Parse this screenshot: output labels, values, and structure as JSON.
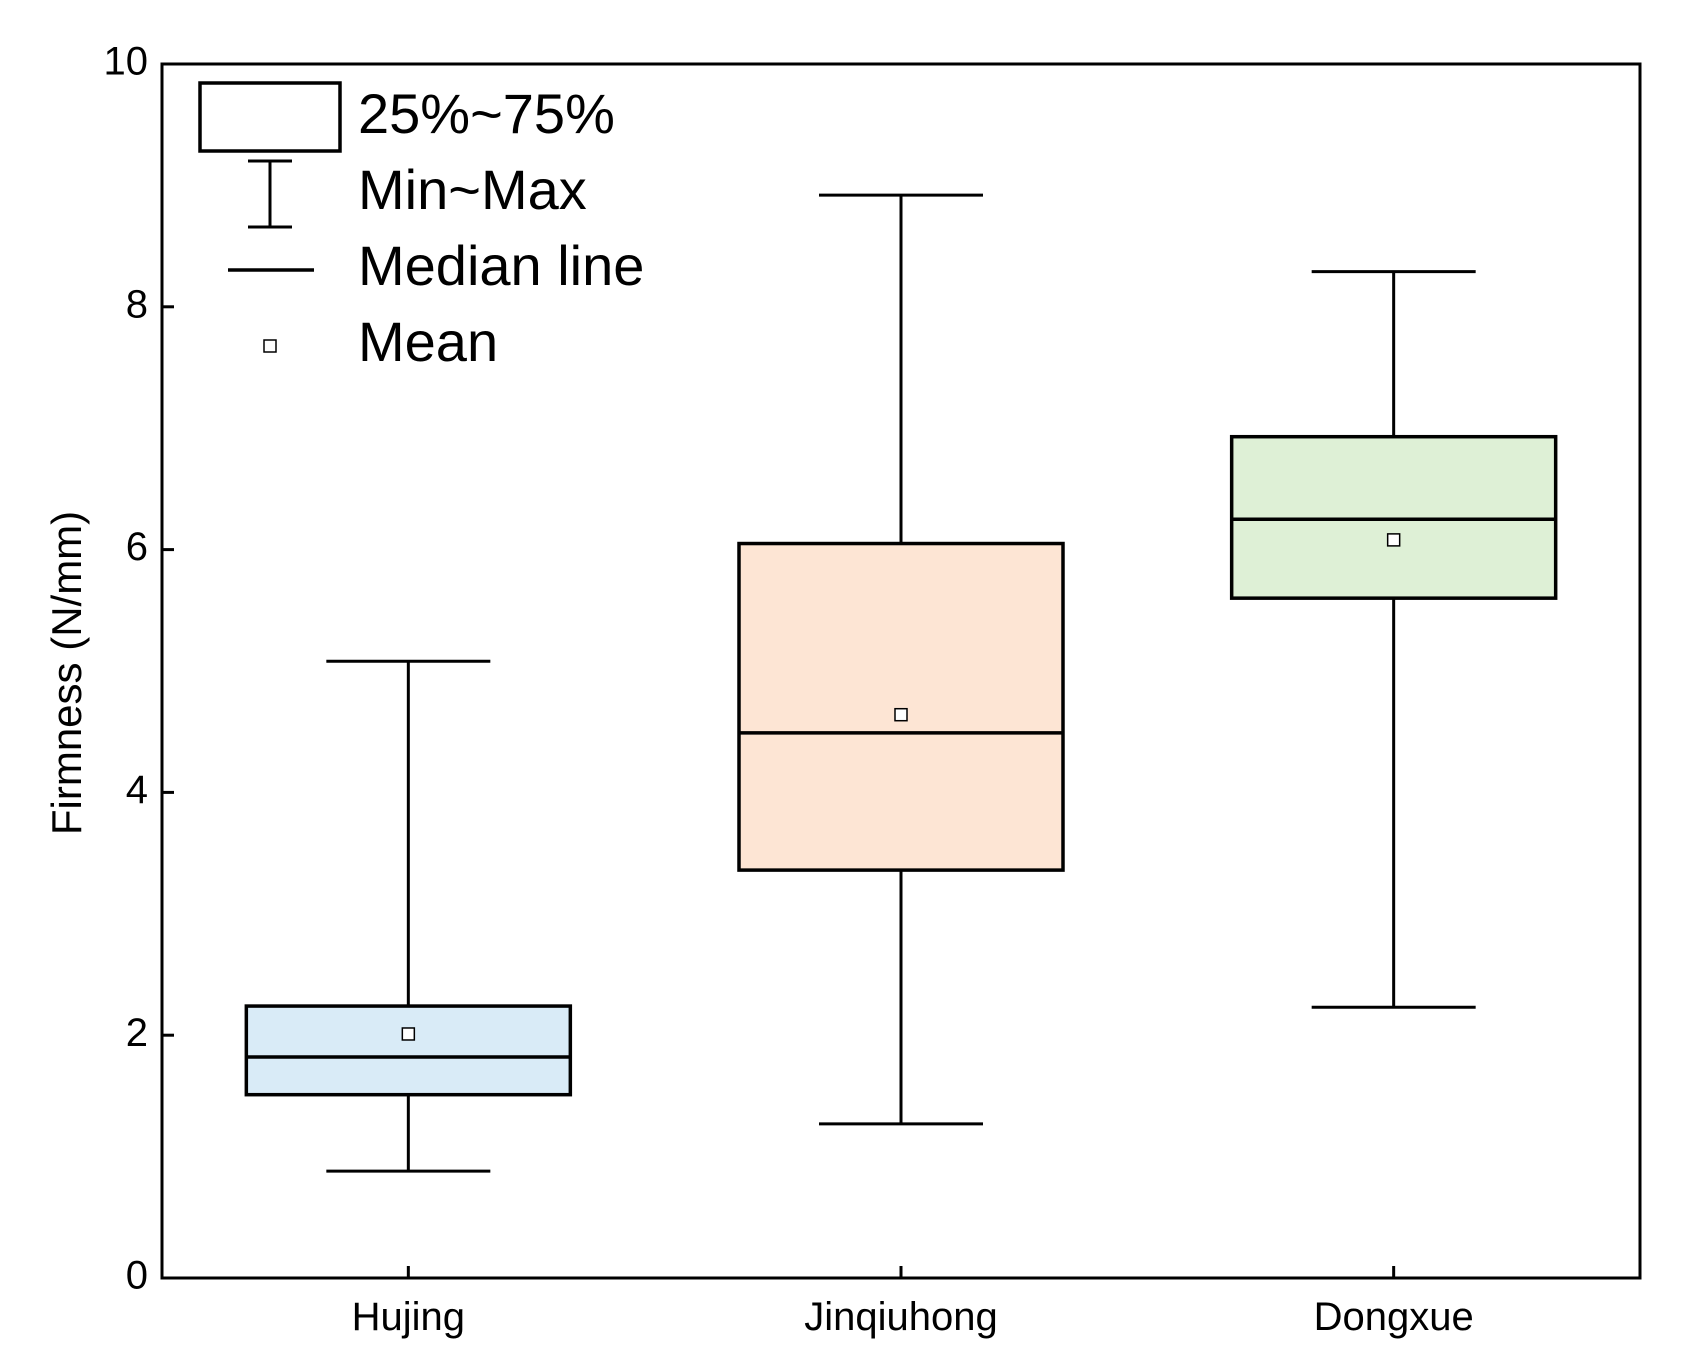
{
  "chart_data": {
    "type": "box",
    "categories": [
      "Hujing",
      "Jinqiuhong",
      "Dongxue"
    ],
    "boxes": [
      {
        "category": "Hujing",
        "min": 0.88,
        "q1": 1.51,
        "median": 1.82,
        "q3": 2.24,
        "max": 5.08,
        "mean": 2.01,
        "fill": "#d9ebf7"
      },
      {
        "category": "Jinqiuhong",
        "min": 1.27,
        "q1": 3.36,
        "median": 4.49,
        "q3": 6.05,
        "max": 8.92,
        "mean": 4.64,
        "fill": "#fde5d4"
      },
      {
        "category": "Dongxue",
        "min": 2.23,
        "q1": 5.6,
        "median": 6.25,
        "q3": 6.93,
        "max": 8.29,
        "mean": 6.08,
        "fill": "#def0d6"
      }
    ],
    "ylabel": "Firmness (N/mm)",
    "ylim": [
      0,
      10
    ],
    "yticks": [
      "0",
      "2",
      "4",
      "6",
      "8",
      "10"
    ],
    "grid": false,
    "legend": {
      "placement": "top-left",
      "items": [
        {
          "symbol": "box",
          "label": "25%~75%"
        },
        {
          "symbol": "whisker",
          "label": "Min~Max"
        },
        {
          "symbol": "median-line",
          "label": "Median line"
        },
        {
          "symbol": "mean-square",
          "label": "Mean"
        }
      ]
    }
  }
}
